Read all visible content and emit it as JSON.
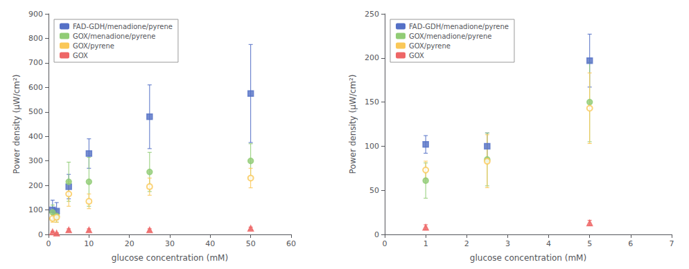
{
  "chart_data": [
    {
      "type": "scatter",
      "xlabel": "glucose concentration (mM)",
      "ylabel": "Power density (μW/cm²)",
      "xlim": [
        0,
        60
      ],
      "ylim": [
        0,
        900
      ],
      "xticks": [
        0,
        10,
        20,
        30,
        40,
        50,
        60
      ],
      "yticks": [
        0,
        100,
        200,
        300,
        400,
        500,
        600,
        700,
        800,
        900
      ],
      "grid": false,
      "legend": "upper left",
      "series": [
        {
          "name": "FAD-GDH/menadione/pyrene",
          "marker": "square",
          "x": [
            1,
            2,
            5,
            10,
            25,
            50
          ],
          "values": [
            100,
            95,
            195,
            330,
            480,
            575
          ],
          "yerr": [
            40,
            35,
            50,
            60,
            130,
            200
          ]
        },
        {
          "name": "GOX/menadione/pyrene",
          "marker": "circle",
          "x": [
            1,
            2,
            5,
            10,
            25,
            50
          ],
          "values": [
            90,
            75,
            215,
            215,
            255,
            300
          ],
          "yerr": [
            30,
            25,
            80,
            100,
            80,
            70
          ]
        },
        {
          "name": "GOX/pyrene",
          "marker": "open circle",
          "x": [
            1,
            2,
            5,
            10,
            25,
            50
          ],
          "values": [
            65,
            70,
            165,
            135,
            195,
            230
          ],
          "yerr": [
            15,
            20,
            50,
            30,
            35,
            40
          ]
        },
        {
          "name": "GOX",
          "marker": "triangle",
          "x": [
            1,
            2,
            5,
            10,
            25,
            50
          ],
          "values": [
            10,
            5,
            18,
            18,
            18,
            25
          ],
          "yerr": [
            3,
            2,
            5,
            5,
            5,
            5
          ]
        }
      ]
    },
    {
      "type": "scatter",
      "xlabel": "glucose concentration (mM)",
      "ylabel": "Power density (μW/cm²)",
      "xlim": [
        0,
        7
      ],
      "ylim": [
        0,
        250
      ],
      "xticks": [
        0,
        1,
        2,
        3,
        4,
        5,
        6,
        7
      ],
      "yticks": [
        0,
        50,
        100,
        150,
        200,
        250
      ],
      "grid": false,
      "legend": "upper left",
      "series": [
        {
          "name": "FAD-GDH/menadione/pyrene",
          "marker": "square",
          "x": [
            1,
            2.5,
            5
          ],
          "values": [
            102,
            100,
            197
          ],
          "yerr": [
            10,
            15,
            30
          ]
        },
        {
          "name": "GOX/menadione/pyrene",
          "marker": "circle",
          "x": [
            1,
            2.5,
            5
          ],
          "values": [
            61,
            85,
            150
          ],
          "yerr": [
            20,
            30,
            45
          ]
        },
        {
          "name": "GOX/pyrene",
          "marker": "open circle",
          "x": [
            1,
            2.5,
            5
          ],
          "values": [
            73,
            83,
            143
          ],
          "yerr": [
            10,
            30,
            40
          ]
        },
        {
          "name": "GOX",
          "marker": "triangle",
          "x": [
            1,
            5
          ],
          "values": [
            8,
            13
          ],
          "yerr": [
            3,
            3
          ]
        }
      ]
    }
  ]
}
